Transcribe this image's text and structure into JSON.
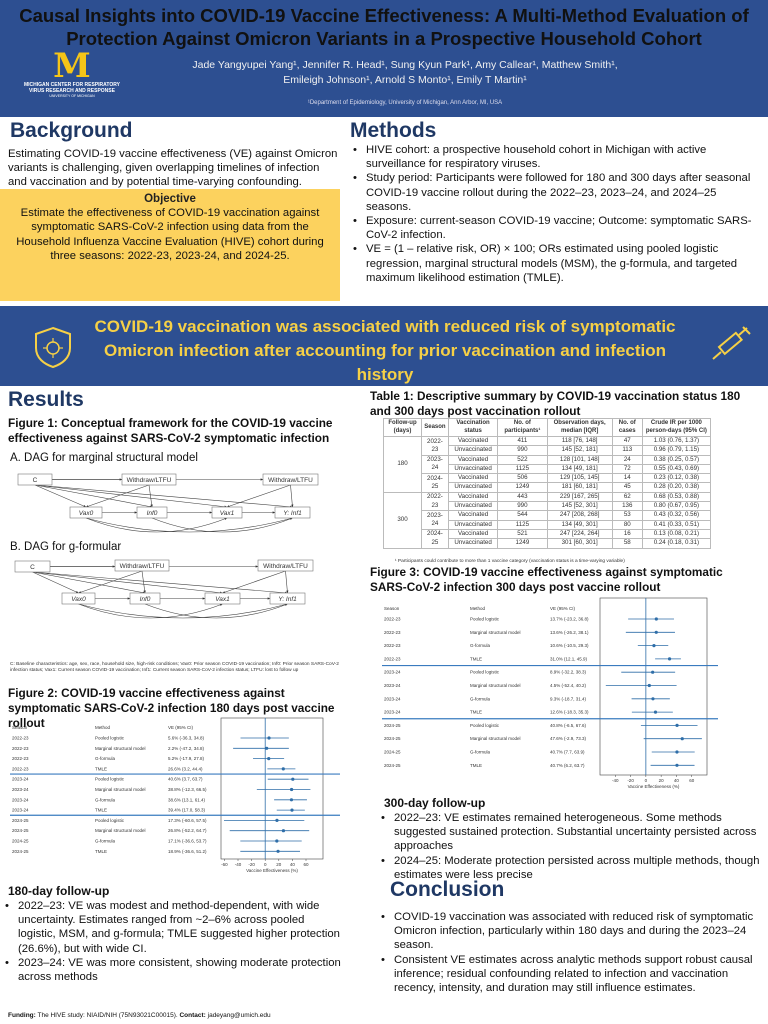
{
  "header": {
    "title": "Causal Insights into COVID-19 Vaccine Effectiveness: A Multi-Method Evaluation of Protection Against Omicron Variants in a Prospective Household Cohort",
    "logo_letter": "M",
    "logo_text": "MICHIGAN CENTER FOR RESPIRATORY VIRUS RESEARCH AND RESPONSE",
    "logo_sub": "UNIVERSITY OF MICHIGAN",
    "authors_line1": "Jade Yangyupei Yang¹, Jennifer R. Head¹, Sung Kyun Park¹, Amy Callear¹, Matthew Smith¹,",
    "authors_line2": "Emileigh Johnson¹, Arnold S Monto¹, Emily T Martin¹",
    "affiliation": "¹Department of Epidemiology, University of Michigan, Ann Arbor, MI, USA"
  },
  "background": {
    "heading": "Background",
    "text": "Estimating COVID-19 vaccine effectiveness (VE) against Omicron variants is challenging, given overlapping timelines of infection and vaccination and by potential time-varying confounding.",
    "objective_heading": "Objective",
    "objective_text": "Estimate the effectiveness of COVID-19 vaccination against symptomatic SARS-CoV-2 infection using data from the Household Influenza Vaccine Evaluation (HIVE) cohort during three seasons: 2022-23, 2023-24, and 2024-25."
  },
  "methods": {
    "heading": "Methods",
    "bullets": [
      "HIVE cohort: a prospective household cohort in Michigan with active surveillance for respiratory viruses.",
      "Study period: Participants were followed for 180 and 300 days after seasonal COVID-19 vaccine rollout during the 2022–23, 2023–24, and 2024–25 seasons.",
      "Exposure: current-season COVID-19 vaccine; Outcome: symptomatic SARS-CoV-2 infection.",
      "VE = (1 – relative risk, OR) × 100; ORs estimated using pooled logistic regression, marginal structural models (MSM), the g-formula, and targeted maximum likelihood estimation (TMLE)."
    ]
  },
  "banner": {
    "text": "COVID-19 vaccination was associated with reduced risk of symptomatic Omicron infection after accounting for prior vaccination and infection history",
    "icons": [
      "virus-shield-icon",
      "syringe-icon"
    ]
  },
  "results": {
    "heading": "Results",
    "fig1_title": "Figure 1: Conceptual framework for the COVID-19 vaccine effectiveness against SARS-CoV-2 symptomatic infection",
    "dag_a_title": "A. DAG for marginal structural model",
    "dag_b_title": "B. DAG for g-formular",
    "dag_nodes": {
      "c": "C",
      "withdraw": "Withdraw/LTFU",
      "vax0": "Vax0",
      "inf0": "Inf0",
      "vax1": "Vax1",
      "y": "Y: Inf1"
    },
    "dag_footnote": "C: Baseline characteristics: age, sex, race, household size, high-risk conditions; Vax0: Prior season COVID-19 vaccination; Inf0: Prior season SARS-CoV-2 infection status; Vax1: Current season COVID-19 vaccination; Inf1: Current season SARS-CoV-2 infection status; LTFU: lost to follow up",
    "fig2_title": "Figure 2: COVID-19 vaccine effectiveness against symptomatic SARS-CoV-2 infection 180 days post vaccine rollout",
    "followup180_heading": "180-day follow-up",
    "followup180_bullets": [
      "2022–23: VE was modest and method-dependent, with wide uncertainty. Estimates ranged from ~2–6% across pooled logistic, MSM, and g-formula; TMLE suggested higher protection (26.6%), but with wide CI.",
      "2023–24: VE was more consistent, showing moderate protection across methods"
    ],
    "funding_label": "Funding:",
    "funding_text": " The HIVE study: NIAID/NIH (75N93021C00015). ",
    "contact_label": "Contact:",
    "contact_text": " jadeyang@umich.edu"
  },
  "table1": {
    "title": "Table 1: Descriptive summary by COVID-19 vaccination status 180 and 300 days post vaccination rollout",
    "headers": [
      "Follow-up (days)",
      "Season",
      "Vaccination status",
      "No. of participants¹",
      "Observation days, median [IQR]",
      "No. of cases",
      "Crude IR per 1000 person-days (95% CI)"
    ],
    "groups": [
      {
        "followup": "180",
        "seasons": [
          {
            "season": "2022-23",
            "rows": [
              [
                "Vaccinated",
                "411",
                "118 [76, 148]",
                "47",
                "1.03 (0.76, 1.37)"
              ],
              [
                "Unvaccinated",
                "990",
                "145 [52, 181]",
                "113",
                "0.96 (0.79, 1.15)"
              ]
            ]
          },
          {
            "season": "2023-24",
            "rows": [
              [
                "Vaccinated",
                "522",
                "128 [101, 148]",
                "24",
                "0.38 (0.25, 0.57)"
              ],
              [
                "Unvaccinated",
                "1125",
                "134 [49, 181]",
                "72",
                "0.55 (0.43, 0.69)"
              ]
            ]
          },
          {
            "season": "2024-25",
            "rows": [
              [
                "Vaccinated",
                "506",
                "129 [105, 145]",
                "14",
                "0.23 (0.12, 0.38)"
              ],
              [
                "Unvaccinated",
                "1249",
                "181 [60, 181]",
                "45",
                "0.28 (0.20, 0.38)"
              ]
            ]
          }
        ]
      },
      {
        "followup": "300",
        "seasons": [
          {
            "season": "2022-23",
            "rows": [
              [
                "Vaccinated",
                "443",
                "229 [167, 265]",
                "62",
                "0.68 (0.53, 0.88)"
              ],
              [
                "Unvaccinated",
                "990",
                "145 [52, 301]",
                "136",
                "0.80 (0.67, 0.95)"
              ]
            ]
          },
          {
            "season": "2023-24",
            "rows": [
              [
                "Vaccinated",
                "544",
                "247 [208, 268]",
                "53",
                "0.43 (0.32, 0.56)"
              ],
              [
                "Unvaccinated",
                "1125",
                "134 [49, 301]",
                "80",
                "0.41 (0.33, 0.51)"
              ]
            ]
          },
          {
            "season": "2024-25",
            "rows": [
              [
                "Vaccinated",
                "521",
                "247 [224, 264]",
                "16",
                "0.13 (0.08, 0.21)"
              ],
              [
                "Unvaccinated",
                "1249",
                "301 [60, 301]",
                "58",
                "0.24 (0.18, 0.31)"
              ]
            ]
          }
        ]
      }
    ],
    "footnote": "¹ Participants could contribute to more than 1 vaccine category (vaccination status is a time-varying variable)"
  },
  "fig3": {
    "title": "Figure 3: COVID-19 vaccine effectiveness against symptomatic SARS-CoV-2 infection 300 days post vaccine rollout",
    "followup300_heading": "300-day follow-up",
    "followup300_bullets": [
      "2022–23: VE estimates remained heterogeneous. Some methods suggested sustained protection. Substantial uncertainty persisted across approaches",
      "2024–25: Moderate protection persisted across multiple methods, though estimates were less precise"
    ]
  },
  "conclusion": {
    "heading": "Conclusion",
    "bullets": [
      "COVID-19 vaccination was associated with reduced risk of symptomatic Omicron infection, particularly within 180 days and during the 2023–24 season.",
      "Consistent VE estimates across analytic methods support robust causal inference; residual confounding related to infection and vaccination recency, intensity, and duration may still influence estimates."
    ]
  },
  "chart_data": [
    {
      "type": "forest",
      "col_headers": [
        "Season",
        "Method",
        "VE (95% CI)"
      ],
      "xlabel": "Vaccine Effectiveness (%)",
      "xlim": [
        -65,
        85
      ],
      "xticks": [
        -60,
        -40,
        -20,
        0,
        20,
        40,
        60
      ],
      "rows": [
        {
          "season": "2022-23",
          "method": "Pooled logistic",
          "label": "5.6% (-36.3, 34.8)",
          "ve": 5.6,
          "lo": -36.3,
          "hi": 34.8
        },
        {
          "season": "2022-23",
          "method": "Marginal structural model",
          "label": "2.2% (-47.2, 34.8)",
          "ve": 2.2,
          "lo": -47.2,
          "hi": 34.8
        },
        {
          "season": "2022-23",
          "method": "G-formula",
          "label": "5.2% (-17.9, 27.8)",
          "ve": 5.2,
          "lo": -17.9,
          "hi": 27.8
        },
        {
          "season": "2022-23",
          "method": "TMLE",
          "label": "26.6% (3.2, 44.4)",
          "ve": 26.6,
          "lo": 3.2,
          "hi": 44.4
        },
        {
          "season": "2023-24",
          "method": "Pooled logistic",
          "label": "40.6% (3.7, 63.7)",
          "ve": 40.6,
          "lo": 3.7,
          "hi": 63.7
        },
        {
          "season": "2023-24",
          "method": "Marginal structural model",
          "label": "38.8% (-12.3, 66.5)",
          "ve": 38.8,
          "lo": -12.3,
          "hi": 66.5
        },
        {
          "season": "2023-24",
          "method": "G-formula",
          "label": "38.6% (13.1, 61.4)",
          "ve": 38.6,
          "lo": 13.1,
          "hi": 61.4
        },
        {
          "season": "2023-24",
          "method": "TMLE",
          "label": "39.4% (17.0, 58.3)",
          "ve": 39.4,
          "lo": 17.0,
          "hi": 58.3
        },
        {
          "season": "2024-25",
          "method": "Pooled logistic",
          "label": "17.3% (-60.6, 57.5)",
          "ve": 17.3,
          "lo": -60.6,
          "hi": 57.5
        },
        {
          "season": "2024-25",
          "method": "Marginal structural model",
          "label": "26.8% (-52.2, 64.7)",
          "ve": 26.8,
          "lo": -52.2,
          "hi": 64.7
        },
        {
          "season": "2024-25",
          "method": "G-formula",
          "label": "17.1% (-36.6, 53.7)",
          "ve": 17.1,
          "lo": -36.6,
          "hi": 53.7
        },
        {
          "season": "2024-25",
          "method": "TMLE",
          "label": "18.9% (-36.6, 51.2)",
          "ve": 18.9,
          "lo": -36.6,
          "hi": 51.2
        }
      ]
    },
    {
      "type": "forest",
      "col_headers": [
        "Season",
        "Method",
        "VE (95% CI)"
      ],
      "xlabel": "Vaccine Effectiveness (%)",
      "xlim": [
        -60,
        80
      ],
      "xticks": [
        -40,
        -20,
        0,
        20,
        40,
        60
      ],
      "rows": [
        {
          "season": "2022-23",
          "method": "Pooled logistic",
          "label": "13.7% (-23.2, 36.8)",
          "ve": 13.7,
          "lo": -23.2,
          "hi": 36.8
        },
        {
          "season": "2022-23",
          "method": "Marginal structural model",
          "label": "13.6% (-26.2, 38.1)",
          "ve": 13.6,
          "lo": -26.2,
          "hi": 38.1
        },
        {
          "season": "2022-23",
          "method": "G-formula",
          "label": "10.6% (-10.5, 29.3)",
          "ve": 10.6,
          "lo": -10.5,
          "hi": 29.3
        },
        {
          "season": "2022-23",
          "method": "TMLE",
          "label": "31.0% (12.1, 45.9)",
          "ve": 31.0,
          "lo": 12.1,
          "hi": 45.9
        },
        {
          "season": "2023-24",
          "method": "Pooled logistic",
          "label": "8.9% (-32.2, 38.3)",
          "ve": 8.9,
          "lo": -32.2,
          "hi": 38.3
        },
        {
          "season": "2023-24",
          "method": "Marginal structural model",
          "label": "4.5% (-52.4, 40.2)",
          "ve": 4.5,
          "lo": -52.4,
          "hi": 40.2
        },
        {
          "season": "2023-24",
          "method": "G-formula",
          "label": "9.3% (-18.7, 31.4)",
          "ve": 9.3,
          "lo": -18.7,
          "hi": 31.4
        },
        {
          "season": "2023-24",
          "method": "TMLE",
          "label": "12.6% (-18.3, 35.3)",
          "ve": 12.6,
          "lo": -18.3,
          "hi": 35.3
        },
        {
          "season": "2024-25",
          "method": "Pooled logistic",
          "label": "40.8% (-6.5, 67.6)",
          "ve": 40.8,
          "lo": -6.5,
          "hi": 67.6
        },
        {
          "season": "2024-25",
          "method": "Marginal structural model",
          "label": "47.6% (-2.9, 73.3)",
          "ve": 47.6,
          "lo": -2.9,
          "hi": 73.3
        },
        {
          "season": "2024-25",
          "method": "G-formula",
          "label": "40.7% (7.7, 63.9)",
          "ve": 40.7,
          "lo": 7.7,
          "hi": 63.9
        },
        {
          "season": "2024-25",
          "method": "TMLE",
          "label": "40.7% (6.2, 63.7)",
          "ve": 40.7,
          "lo": 6.2,
          "hi": 63.7
        }
      ]
    }
  ],
  "colors": {
    "header_bg": "#2d4f91",
    "banner_text": "#f6d046",
    "objective_bg": "#fcd25e",
    "heading": "#1f3864",
    "forest": "#2f6ea8"
  }
}
